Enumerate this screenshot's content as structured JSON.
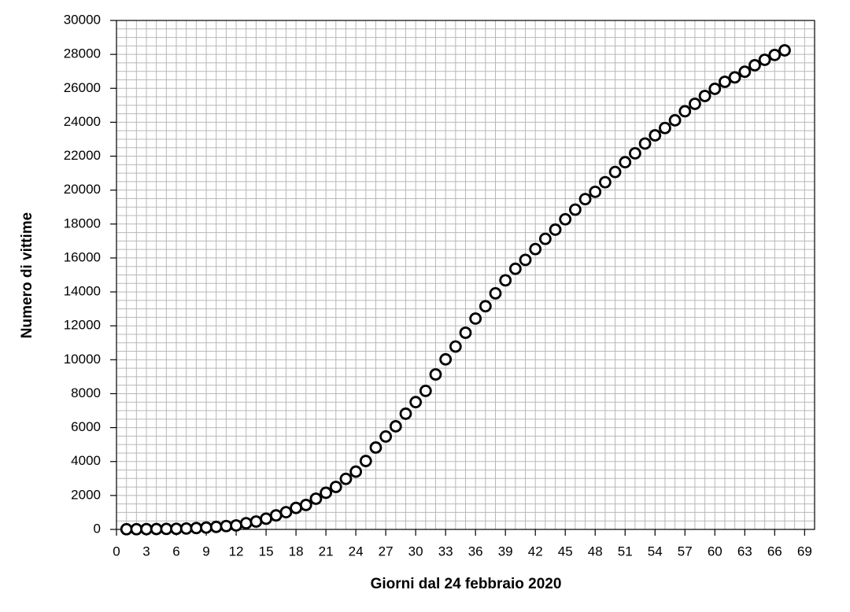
{
  "chart_data": {
    "type": "scatter",
    "x_label": "Giorni dal 24 febbraio 2020",
    "y_label": "Numero di vittime",
    "x": [
      1,
      2,
      3,
      4,
      5,
      6,
      7,
      8,
      9,
      10,
      11,
      12,
      13,
      14,
      15,
      16,
      17,
      18,
      19,
      20,
      21,
      22,
      23,
      24,
      25,
      26,
      27,
      28,
      29,
      30,
      31,
      32,
      33,
      34,
      35,
      36,
      37,
      38,
      39,
      40,
      41,
      42,
      43,
      44,
      45,
      46,
      47,
      48,
      49,
      50,
      51,
      52,
      53,
      54,
      55,
      56,
      57,
      58,
      59,
      60,
      61,
      62,
      63,
      64,
      65,
      66,
      67
    ],
    "values": [
      10,
      12,
      17,
      21,
      29,
      34,
      52,
      79,
      107,
      148,
      197,
      233,
      366,
      463,
      631,
      827,
      1016,
      1266,
      1441,
      1809,
      2158,
      2503,
      2978,
      3405,
      4032,
      4825,
      5476,
      6077,
      6820,
      7503,
      8165,
      9134,
      10023,
      10779,
      11591,
      12428,
      13155,
      13915,
      14681,
      15362,
      15887,
      16523,
      17127,
      17669,
      18279,
      18849,
      19468,
      19899,
      20465,
      21067,
      21645,
      22170,
      22745,
      23227,
      23660,
      24114,
      24648,
      25085,
      25549,
      25969,
      26384,
      26644,
      26977,
      27359,
      27682,
      27967,
      28236
    ],
    "color": "#000000",
    "xlim": [
      0,
      70
    ],
    "xticks": [
      0,
      3,
      6,
      9,
      12,
      15,
      18,
      21,
      24,
      27,
      30,
      33,
      36,
      39,
      42,
      45,
      48,
      51,
      54,
      57,
      60,
      63,
      66,
      69
    ],
    "ylim": [
      0,
      30000
    ],
    "yticks": [
      0,
      2000,
      4000,
      6000,
      8000,
      10000,
      12000,
      14000,
      16000,
      18000,
      20000,
      22000,
      24000,
      26000,
      28000,
      30000
    ],
    "grid": true
  }
}
